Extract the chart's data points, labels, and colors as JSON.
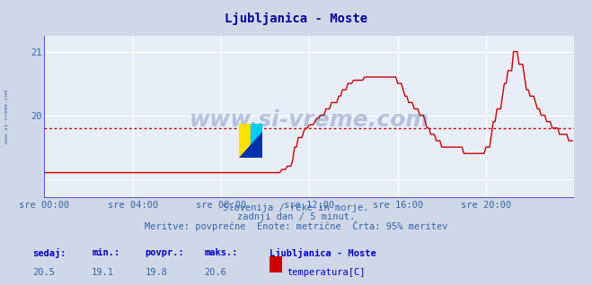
{
  "title": "Ljubljanica - Moste",
  "title_color": "#000099",
  "bg_color": "#d0d8e8",
  "plot_bg_color": "#e8eef8",
  "grid_color": "#ffffff",
  "axis_color": "#3333cc",
  "line_color": "#cc0000",
  "avg_line_color": "#cc0000",
  "avg_value": 19.8,
  "min_value": 19.1,
  "max_value": 20.6,
  "current_value": 20.5,
  "ylim_min": 18.7,
  "ylim_max": 21.25,
  "yticks": [
    19.0,
    20.0,
    21.0
  ],
  "ytick_labels": [
    "",
    "20",
    "21"
  ],
  "xtick_labels": [
    "sre 00:00",
    "sre 04:00",
    "sre 08:00",
    "sre 12:00",
    "sre 16:00",
    "sre 20:00"
  ],
  "xtick_positions": [
    0,
    4,
    8,
    12,
    16,
    20
  ],
  "total_hours": 24,
  "footer_line1": "Slovenija / reke in morje.",
  "footer_line2": "zadnji dan / 5 minut.",
  "footer_line3": "Meritve: povprečne  Enote: metrične  Črta: 95% meritev",
  "footer_color": "#3366aa",
  "stat_label_color": "#0000cc",
  "stat_value_color": "#3366aa",
  "watermark": "www.si-vreme.com",
  "watermark_color": "#1a3a8a",
  "side_text": "www.si-vreme.com",
  "side_text_color": "#4466bb",
  "legend_color": "#cc0000",
  "legend_label": "temperatura[C]",
  "legend_station": "Ljubljanica - Moste"
}
